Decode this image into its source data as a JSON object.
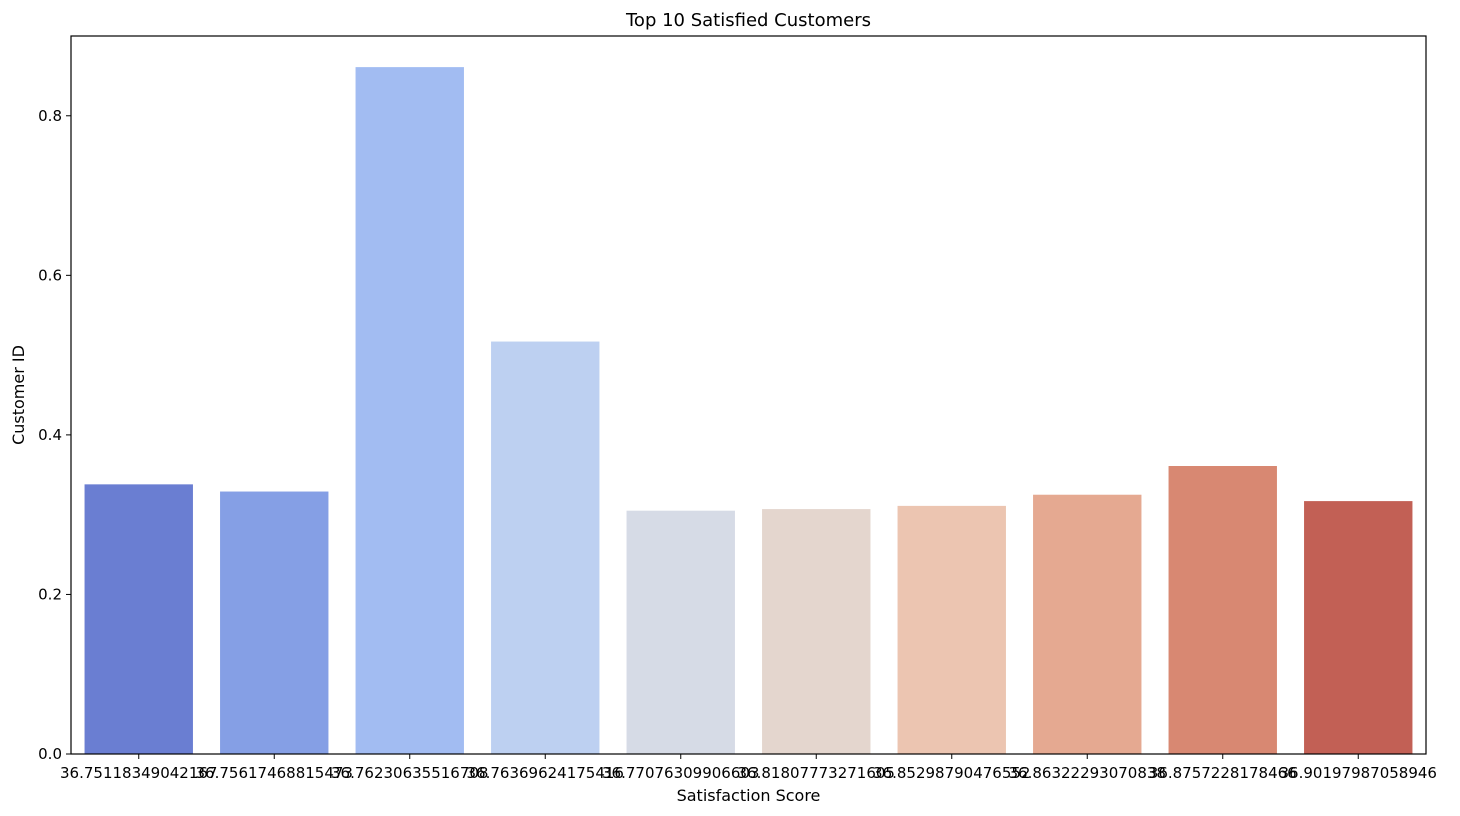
{
  "chart_data": {
    "type": "bar",
    "title": "Top 10 Satisfied Customers",
    "xlabel": "Satisfaction Score",
    "ylabel": "Customer ID",
    "categories": [
      "36.75118349042167",
      "36.75617468815473",
      "36.76230635516708",
      "36.76369624175416",
      "36.77076309906603",
      "36.81807773271605",
      "36.85298790476552",
      "36.86322293070838",
      "36.8757228178466",
      "36.90197987058946"
    ],
    "values": [
      0.338,
      0.329,
      0.861,
      0.517,
      0.305,
      0.307,
      0.311,
      0.325,
      0.361,
      0.317
    ],
    "colors": [
      "#6a7ed2",
      "#859fe5",
      "#a2bcf2",
      "#bdd0f1",
      "#d6dbe6",
      "#e4d6ce",
      "#ecc5b1",
      "#e5a991",
      "#d88872",
      "#c26055"
    ],
    "ylim": [
      0,
      0.9
    ],
    "yticks": [
      "0.0",
      "0.2",
      "0.4",
      "0.6",
      "0.8"
    ],
    "grid": false,
    "legend": "none"
  }
}
